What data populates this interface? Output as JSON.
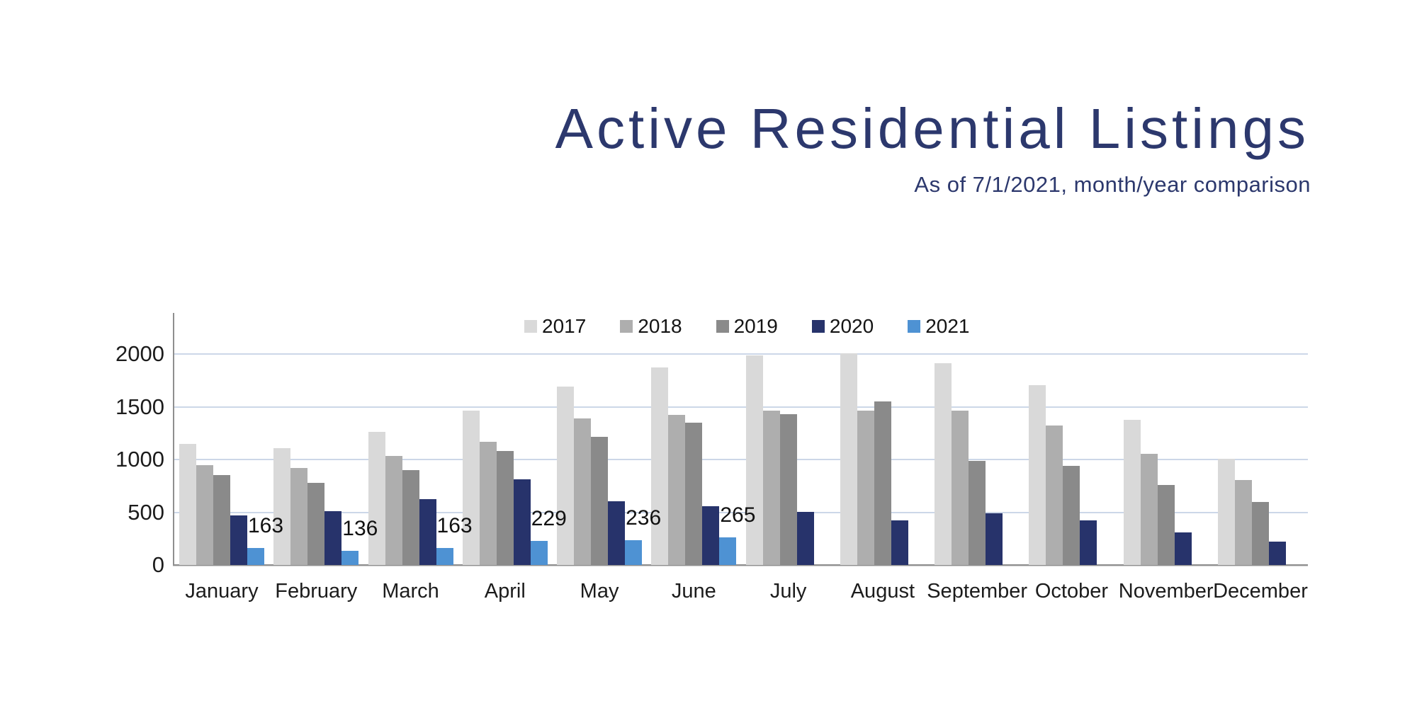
{
  "chart_data": {
    "type": "bar",
    "title": "Active Residential Listings",
    "subtitle": "As of 7/1/2021, month/year comparison",
    "categories": [
      "January",
      "February",
      "March",
      "April",
      "May",
      "June",
      "July",
      "August",
      "September",
      "October",
      "November",
      "December"
    ],
    "series": [
      {
        "name": "2017",
        "color": "#d9d9d9",
        "values": [
          1150,
          1105,
          1260,
          1460,
          1690,
          1870,
          1985,
          2005,
          1915,
          1705,
          1375,
          1010
        ]
      },
      {
        "name": "2018",
        "color": "#aeaeae",
        "values": [
          945,
          920,
          1035,
          1170,
          1390,
          1420,
          1460,
          1460,
          1460,
          1320,
          1055,
          805
        ]
      },
      {
        "name": "2019",
        "color": "#8a8a8a",
        "values": [
          855,
          780,
          900,
          1080,
          1215,
          1350,
          1430,
          1550,
          985,
          940,
          760,
          600
        ]
      },
      {
        "name": "2020",
        "color": "#27336b",
        "values": [
          470,
          510,
          625,
          810,
          605,
          555,
          505,
          420,
          490,
          420,
          310,
          220
        ]
      },
      {
        "name": "2021",
        "color": "#4e92d3",
        "values": [
          163,
          136,
          163,
          229,
          236,
          265,
          null,
          null,
          null,
          null,
          null,
          null
        ],
        "show_value_labels": true
      }
    ],
    "y_axis": {
      "ticks": [
        0,
        500,
        1000,
        1500,
        2000
      ],
      "max": 2400
    },
    "grid": true,
    "legend_position": "top-center"
  },
  "colors": {
    "title": "#2c386d",
    "grid": "#ccd7e8",
    "axis": "#8f8f8f",
    "text": "#1c1c1c"
  }
}
